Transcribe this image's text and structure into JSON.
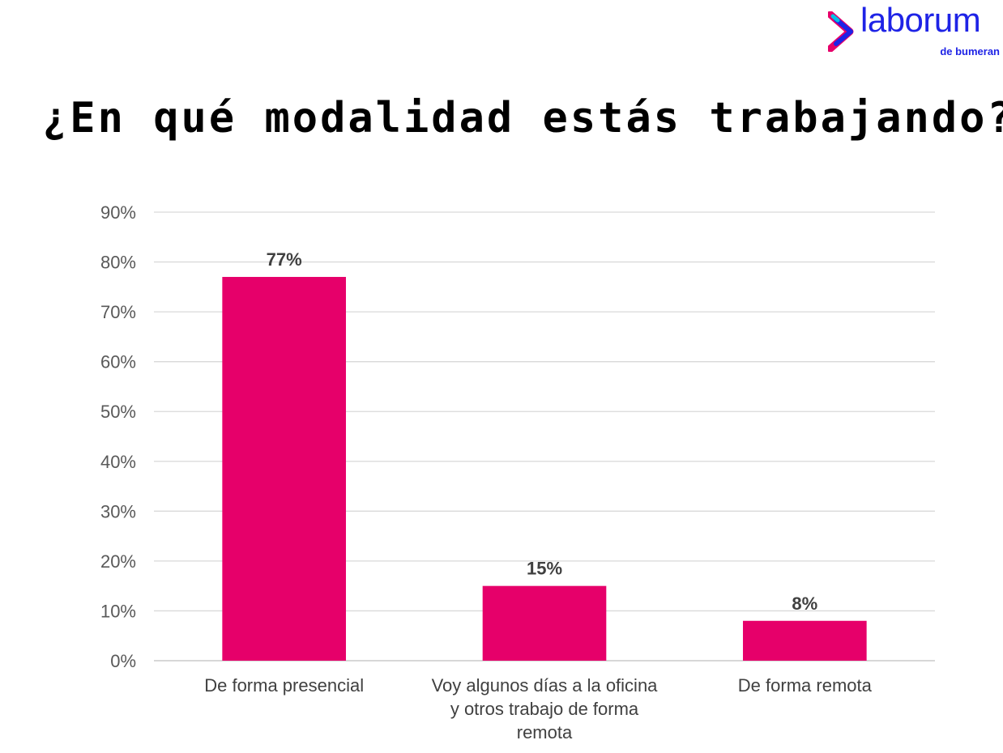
{
  "brand": {
    "name": "laborum",
    "tagline": "de bumeran",
    "color": "#1e23e6",
    "mark_colors": [
      "#e6006a",
      "#1e23e6",
      "#00c3e6"
    ]
  },
  "chart_data": {
    "type": "bar",
    "title": "¿En qué modalidad estás trabajando?",
    "categories": [
      "De forma presencial",
      "Voy algunos días a la oficina y otros trabajo de forma remota",
      "De forma remota"
    ],
    "category_lines": [
      [
        "De forma presencial"
      ],
      [
        "Voy algunos días a la oficina",
        "y otros trabajo de forma",
        "remota"
      ],
      [
        "De forma remota"
      ]
    ],
    "values": [
      77,
      15,
      8
    ],
    "data_labels": [
      "77%",
      "15%",
      "8%"
    ],
    "y_ticks": [
      "0%",
      "10%",
      "20%",
      "30%",
      "40%",
      "50%",
      "60%",
      "70%",
      "80%",
      "90%"
    ],
    "ylim": [
      0,
      90
    ],
    "grid": true,
    "legend": "none",
    "bar_color": "#e6006a"
  }
}
